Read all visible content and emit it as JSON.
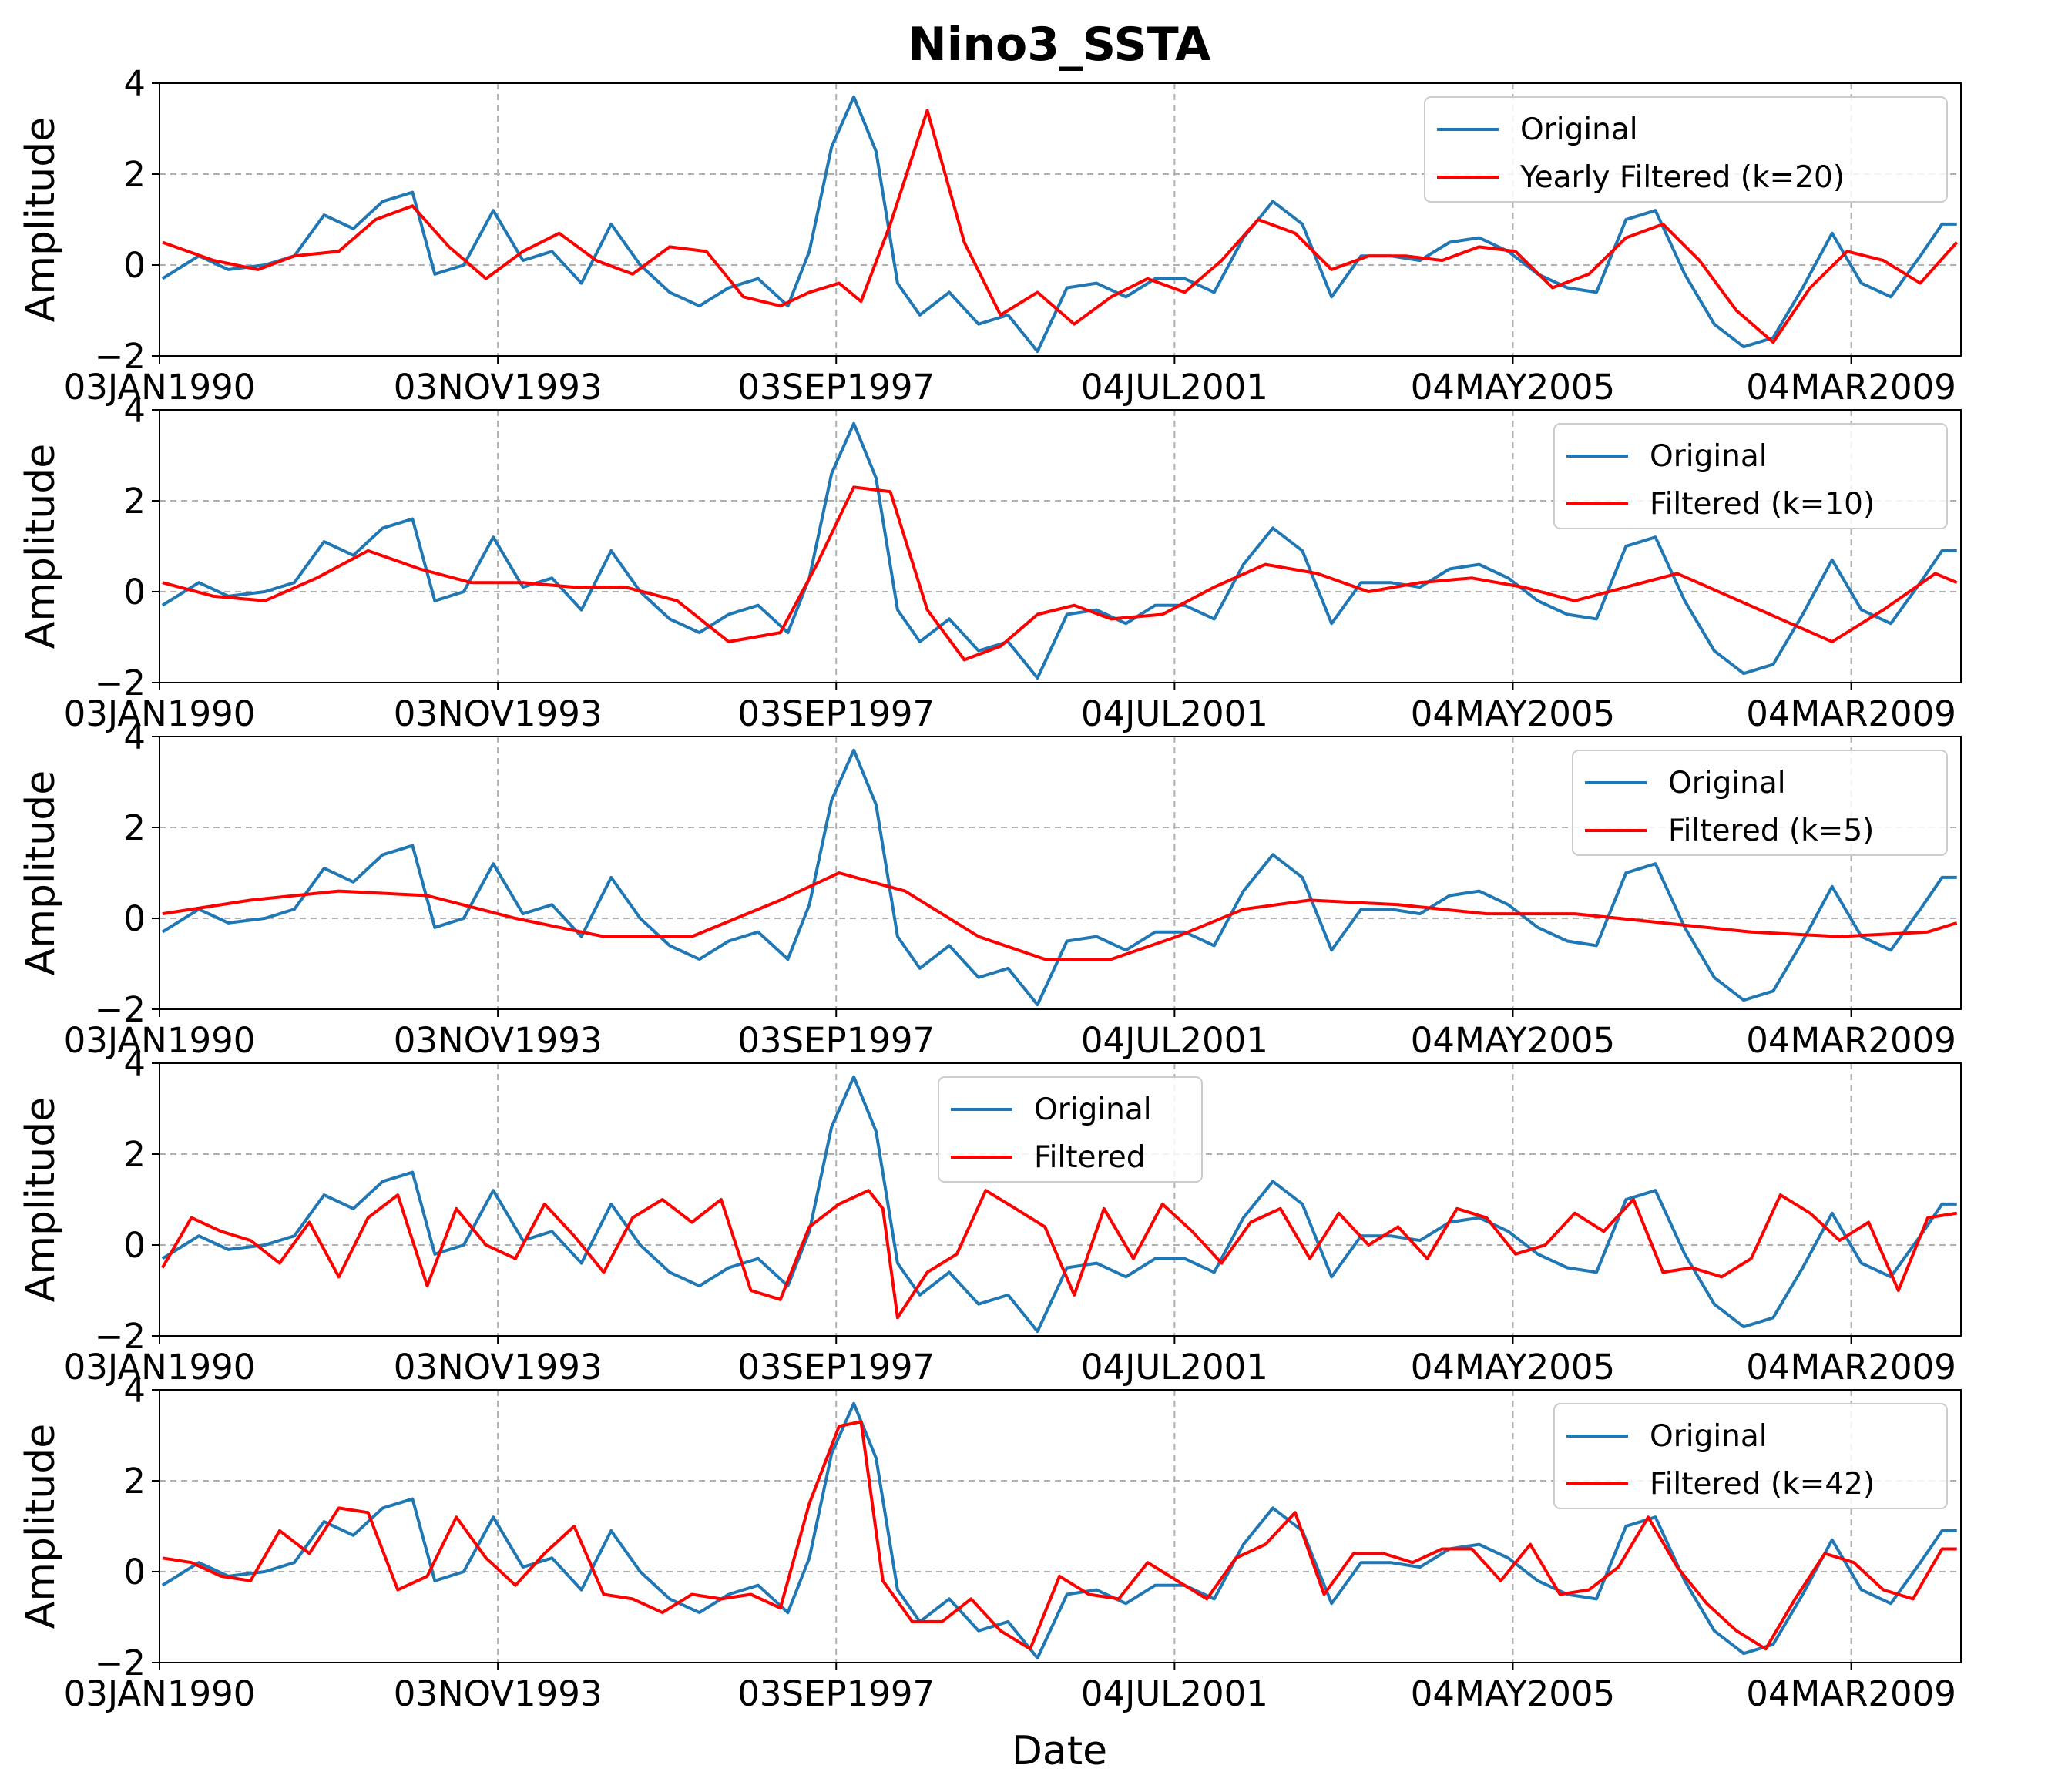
{
  "chart_data": {
    "type": "line",
    "title": "Nino3_SSTA",
    "xlabel": "Date",
    "ylabel": "Amplitude",
    "grid": true,
    "xlim": [
      "1990-01-03",
      "2010-06-01"
    ],
    "ylim": [
      -2,
      4
    ],
    "yticks": [
      -2,
      0,
      2,
      4
    ],
    "xticks": [
      {
        "date": "1990-01-03",
        "label": "03JAN1990"
      },
      {
        "date": "1993-11-03",
        "label": "03NOV1993"
      },
      {
        "date": "1997-09-03",
        "label": "03SEP1997"
      },
      {
        "date": "2001-07-04",
        "label": "04JUL2001"
      },
      {
        "date": "2005-05-04",
        "label": "04MAY2005"
      },
      {
        "date": "2009-03-04",
        "label": "04MAR2009"
      }
    ],
    "colors": {
      "original": "#1f77b4",
      "filtered": "#ff0000"
    },
    "original": {
      "name": "Original",
      "x": [
        "1990-01",
        "1990-06",
        "1990-10",
        "1991-03",
        "1991-07",
        "1991-11",
        "1992-03",
        "1992-07",
        "1992-11",
        "1993-02",
        "1993-06",
        "1993-10",
        "1994-02",
        "1994-06",
        "1994-10",
        "1995-02",
        "1995-06",
        "1995-10",
        "1996-02",
        "1996-06",
        "1996-10",
        "1997-02",
        "1997-05",
        "1997-08",
        "1997-11",
        "1998-02",
        "1998-05",
        "1998-08",
        "1998-12",
        "1999-04",
        "1999-08",
        "1999-12",
        "2000-04",
        "2000-08",
        "2000-12",
        "2001-04",
        "2001-08",
        "2001-12",
        "2002-04",
        "2002-08",
        "2002-12",
        "2003-04",
        "2003-08",
        "2003-12",
        "2004-04",
        "2004-08",
        "2004-12",
        "2005-04",
        "2005-08",
        "2005-12",
        "2006-04",
        "2006-08",
        "2006-12",
        "2007-04",
        "2007-08",
        "2007-12",
        "2008-04",
        "2008-08",
        "2008-12",
        "2009-04",
        "2009-08",
        "2009-12",
        "2010-03",
        "2010-05"
      ],
      "y": [
        -0.3,
        0.2,
        -0.1,
        0.0,
        0.2,
        1.1,
        0.8,
        1.4,
        1.6,
        -0.2,
        0.0,
        1.2,
        0.1,
        0.3,
        -0.4,
        0.9,
        0.0,
        -0.6,
        -0.9,
        -0.5,
        -0.3,
        -0.9,
        0.3,
        2.6,
        3.7,
        2.5,
        -0.4,
        -1.1,
        -0.6,
        -1.3,
        -1.1,
        -1.9,
        -0.5,
        -0.4,
        -0.7,
        -0.3,
        -0.3,
        -0.6,
        0.6,
        1.4,
        0.9,
        -0.7,
        0.2,
        0.2,
        0.1,
        0.5,
        0.6,
        0.3,
        -0.2,
        -0.5,
        -0.6,
        1.0,
        1.2,
        -0.2,
        -1.3,
        -1.8,
        -1.6,
        -0.5,
        0.7,
        -0.4,
        -0.7,
        0.2,
        0.9,
        0.9
      ]
    },
    "series": [
      {
        "name": "Yearly Filtered (k=20)",
        "x": [
          "1990-01",
          "1990-08",
          "1991-02",
          "1991-07",
          "1992-01",
          "1992-06",
          "1992-11",
          "1993-04",
          "1993-09",
          "1994-02",
          "1994-07",
          "1994-12",
          "1995-05",
          "1995-10",
          "1996-03",
          "1996-08",
          "1997-01",
          "1997-05",
          "1997-09",
          "1997-12",
          "1998-04",
          "1998-09",
          "1999-02",
          "1999-07",
          "1999-12",
          "2000-05",
          "2000-10",
          "2001-03",
          "2001-08",
          "2002-01",
          "2002-06",
          "2002-11",
          "2003-04",
          "2003-09",
          "2004-02",
          "2004-07",
          "2004-12",
          "2005-05",
          "2005-10",
          "2006-03",
          "2006-08",
          "2007-01",
          "2007-06",
          "2007-11",
          "2008-04",
          "2008-09",
          "2009-02",
          "2009-07",
          "2009-12",
          "2010-05"
        ],
        "y": [
          0.5,
          0.1,
          -0.1,
          0.2,
          0.3,
          1.0,
          1.3,
          0.4,
          -0.3,
          0.3,
          0.7,
          0.1,
          -0.2,
          0.4,
          0.3,
          -0.7,
          -0.9,
          -0.6,
          -0.4,
          -0.8,
          0.9,
          3.4,
          0.5,
          -1.1,
          -0.6,
          -1.3,
          -0.7,
          -0.3,
          -0.6,
          0.1,
          1.0,
          0.7,
          -0.1,
          0.2,
          0.2,
          0.1,
          0.4,
          0.3,
          -0.5,
          -0.2,
          0.6,
          0.9,
          0.1,
          -1.0,
          -1.7,
          -0.5,
          0.3,
          0.1,
          -0.4,
          0.5
        ]
      },
      {
        "name": "Filtered (k=10)",
        "x": [
          "1990-01",
          "1990-08",
          "1991-03",
          "1991-10",
          "1992-05",
          "1992-12",
          "1993-07",
          "1994-02",
          "1994-09",
          "1995-04",
          "1995-11",
          "1996-06",
          "1997-01",
          "1997-06",
          "1997-11",
          "1998-04",
          "1998-09",
          "1999-02",
          "1999-07",
          "1999-12",
          "2000-05",
          "2000-10",
          "2001-05",
          "2001-12",
          "2002-07",
          "2003-02",
          "2003-09",
          "2004-04",
          "2004-11",
          "2005-06",
          "2006-01",
          "2006-08",
          "2007-03",
          "2007-10",
          "2008-05",
          "2008-12",
          "2009-07",
          "2010-02",
          "2010-05"
        ],
        "y": [
          0.2,
          -0.1,
          -0.2,
          0.3,
          0.9,
          0.5,
          0.2,
          0.2,
          0.1,
          0.1,
          -0.2,
          -1.1,
          -0.9,
          0.6,
          2.3,
          2.2,
          -0.4,
          -1.5,
          -1.2,
          -0.5,
          -0.3,
          -0.6,
          -0.5,
          0.1,
          0.6,
          0.4,
          0.0,
          0.2,
          0.3,
          0.1,
          -0.2,
          0.1,
          0.4,
          -0.1,
          -0.6,
          -1.1,
          -0.4,
          0.4,
          0.2
        ]
      },
      {
        "name": "Filtered (k=5)",
        "x": [
          "1990-01",
          "1991-01",
          "1992-01",
          "1993-01",
          "1994-01",
          "1995-01",
          "1996-01",
          "1997-01",
          "1997-09",
          "1998-06",
          "1999-04",
          "2000-01",
          "2000-10",
          "2001-07",
          "2002-04",
          "2003-01",
          "2004-01",
          "2005-01",
          "2006-01",
          "2007-01",
          "2008-01",
          "2009-01",
          "2010-01",
          "2010-05"
        ],
        "y": [
          0.1,
          0.4,
          0.6,
          0.5,
          0.0,
          -0.4,
          -0.4,
          0.4,
          1.0,
          0.6,
          -0.4,
          -0.9,
          -0.9,
          -0.4,
          0.2,
          0.4,
          0.3,
          0.1,
          0.1,
          -0.1,
          -0.3,
          -0.4,
          -0.3,
          -0.1
        ]
      },
      {
        "name": "Filtered",
        "x": [
          "1990-01",
          "1990-05",
          "1990-09",
          "1991-01",
          "1991-05",
          "1991-09",
          "1992-01",
          "1992-05",
          "1992-09",
          "1993-01",
          "1993-05",
          "1993-09",
          "1994-01",
          "1994-05",
          "1994-09",
          "1995-01",
          "1995-05",
          "1995-09",
          "1996-01",
          "1996-05",
          "1996-09",
          "1997-01",
          "1997-05",
          "1997-09",
          "1998-01",
          "1998-03",
          "1998-05",
          "1998-09",
          "1999-01",
          "1999-05",
          "1999-09",
          "2000-01",
          "2000-05",
          "2000-09",
          "2001-01",
          "2001-05",
          "2001-09",
          "2002-01",
          "2002-05",
          "2002-09",
          "2003-01",
          "2003-05",
          "2003-09",
          "2004-01",
          "2004-05",
          "2004-09",
          "2005-01",
          "2005-05",
          "2005-09",
          "2006-01",
          "2006-05",
          "2006-09",
          "2007-01",
          "2007-05",
          "2007-09",
          "2008-01",
          "2008-05",
          "2008-09",
          "2009-01",
          "2009-05",
          "2009-09",
          "2010-01",
          "2010-05"
        ],
        "y": [
          -0.5,
          0.6,
          0.3,
          0.1,
          -0.4,
          0.5,
          -0.7,
          0.6,
          1.1,
          -0.9,
          0.8,
          0.0,
          -0.3,
          0.9,
          0.2,
          -0.6,
          0.6,
          1.0,
          0.5,
          1.0,
          -1.0,
          -1.2,
          0.4,
          0.9,
          1.2,
          0.8,
          -1.6,
          -0.6,
          -0.2,
          1.2,
          0.8,
          0.4,
          -1.1,
          0.8,
          -0.3,
          0.9,
          0.3,
          -0.4,
          0.5,
          0.8,
          -0.3,
          0.7,
          0.0,
          0.4,
          -0.3,
          0.8,
          0.6,
          -0.2,
          0.0,
          0.7,
          0.3,
          1.0,
          -0.6,
          -0.5,
          -0.7,
          -0.3,
          1.1,
          0.7,
          0.1,
          0.5,
          -1.0,
          0.6,
          0.7
        ]
      },
      {
        "name": "Filtered (k=42)",
        "x": [
          "1990-01",
          "1990-05",
          "1990-09",
          "1991-01",
          "1991-05",
          "1991-09",
          "1992-01",
          "1992-05",
          "1992-09",
          "1993-01",
          "1993-05",
          "1993-09",
          "1994-01",
          "1994-05",
          "1994-09",
          "1995-01",
          "1995-05",
          "1995-09",
          "1996-01",
          "1996-05",
          "1996-09",
          "1997-01",
          "1997-05",
          "1997-09",
          "1997-12",
          "1998-03",
          "1998-07",
          "1998-11",
          "1999-03",
          "1999-07",
          "1999-11",
          "2000-03",
          "2000-07",
          "2000-11",
          "2001-03",
          "2001-07",
          "2001-11",
          "2002-03",
          "2002-07",
          "2002-11",
          "2003-03",
          "2003-07",
          "2003-11",
          "2004-03",
          "2004-07",
          "2004-11",
          "2005-03",
          "2005-07",
          "2005-11",
          "2006-03",
          "2006-07",
          "2006-11",
          "2007-03",
          "2007-07",
          "2007-11",
          "2008-03",
          "2008-07",
          "2008-11",
          "2009-03",
          "2009-07",
          "2009-11",
          "2010-03",
          "2010-05"
        ],
        "y": [
          0.3,
          0.2,
          -0.1,
          -0.2,
          0.9,
          0.4,
          1.4,
          1.3,
          -0.4,
          -0.1,
          1.2,
          0.3,
          -0.3,
          0.4,
          1.0,
          -0.5,
          -0.6,
          -0.9,
          -0.5,
          -0.6,
          -0.5,
          -0.8,
          1.5,
          3.2,
          3.3,
          -0.2,
          -1.1,
          -1.1,
          -0.6,
          -1.3,
          -1.7,
          -0.1,
          -0.5,
          -0.6,
          0.2,
          -0.2,
          -0.6,
          0.3,
          0.6,
          1.3,
          -0.5,
          0.4,
          0.4,
          0.2,
          0.5,
          0.5,
          -0.2,
          0.6,
          -0.5,
          -0.4,
          0.1,
          1.2,
          0.1,
          -0.7,
          -1.3,
          -1.7,
          -0.6,
          0.4,
          0.2,
          -0.4,
          -0.6,
          0.5,
          0.5
        ]
      }
    ],
    "legend_placement": [
      "top-right",
      "top-right",
      "top-right",
      "upper-center",
      "top-right"
    ]
  }
}
